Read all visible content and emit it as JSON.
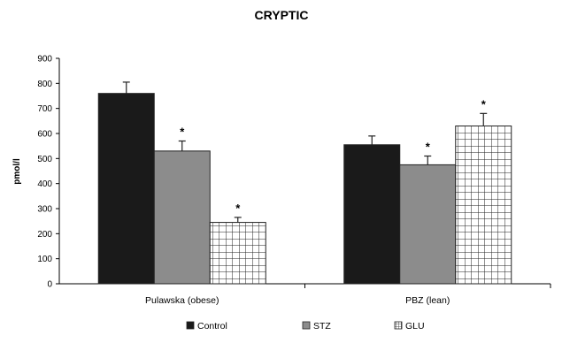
{
  "chart_data": {
    "type": "bar",
    "title": "CRYPTIC",
    "xlabel": "",
    "ylabel": "pmol/l",
    "ylim": [
      0,
      900
    ],
    "yticks": [
      0,
      100,
      200,
      300,
      400,
      500,
      600,
      700,
      800,
      900
    ],
    "grid": false,
    "legend_position": "bottom",
    "categories": [
      "Pulawska (obese)",
      "PBZ (lean)"
    ],
    "series": [
      {
        "name": "Control",
        "values": [
          760,
          555
        ],
        "errors": [
          45,
          35
        ],
        "marks": [
          "",
          ""
        ],
        "color": "#1a1a1a",
        "pattern": "solid"
      },
      {
        "name": "STZ",
        "values": [
          530,
          475
        ],
        "errors": [
          40,
          35
        ],
        "marks": [
          "*",
          "*"
        ],
        "color": "#8c8c8c",
        "pattern": "solid"
      },
      {
        "name": "GLU",
        "values": [
          245,
          630
        ],
        "errors": [
          20,
          50
        ],
        "marks": [
          "*",
          "*"
        ],
        "color": "#ffffff",
        "pattern": "grid"
      }
    ]
  }
}
